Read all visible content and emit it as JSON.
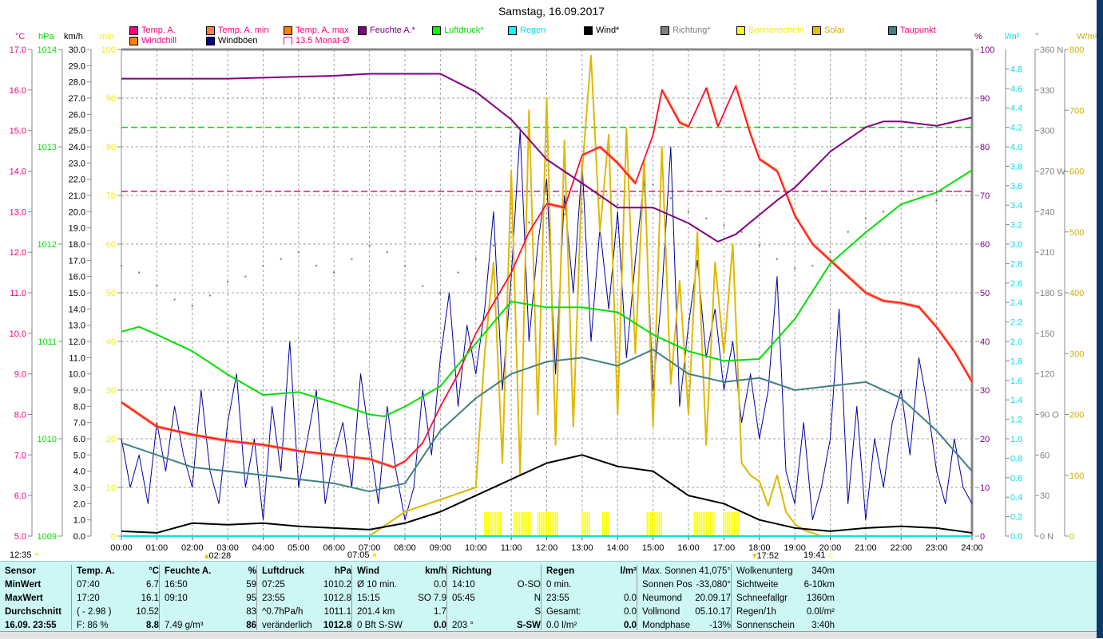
{
  "title": "Samstag, 16.09.2017",
  "legend": [
    {
      "label": "Temp. A.",
      "color": "#ff0080",
      "text": "#ff0080"
    },
    {
      "label": "Windchill",
      "color": "#ff8000",
      "text": "#ff0080"
    },
    {
      "label": "Temp. A. min",
      "color": "#ff8040",
      "text": "#ff0080"
    },
    {
      "label": "Windböen",
      "color": "#000090",
      "text": "#000000"
    },
    {
      "label": "Temp. A. max",
      "color": "#ff8000",
      "text": "#ff0080"
    },
    {
      "label": "13.5 Monat-Ø",
      "color": "#ffffff",
      "text": "#ff0080"
    },
    {
      "label": "Feuchte A.*",
      "color": "#800080",
      "text": "#800080"
    },
    {
      "label": "Luftdruck*",
      "color": "#00ff00",
      "text": "#00e000"
    },
    {
      "label": "Regen",
      "color": "#00ffff",
      "text": "#00e0e0"
    },
    {
      "label": "Wind*",
      "color": "#000000",
      "text": "#000000"
    },
    {
      "label": "Richtung*",
      "color": "#808080",
      "text": "#808080"
    },
    {
      "label": "Sonnenschein",
      "color": "#ffff00",
      "text": "#f0f000"
    },
    {
      "label": "Solar",
      "color": "#e0c000",
      "text": "#d0b000"
    },
    {
      "label": "Taupunkt",
      "color": "#408080",
      "text": "#ff0080"
    }
  ],
  "units": {
    "c": "°C",
    "hpa": "hPa",
    "kmh": "km/h",
    "min": "min",
    "pct": "%",
    "lm2": "l/m²",
    "deg": "°",
    "wm2": "W/m²"
  },
  "markers": {
    "m1": "12:35",
    "m2": "02:28",
    "m3": "07:05",
    "m4": "17:52",
    "m5": "19:41"
  },
  "chart_data": {
    "type": "line",
    "title": "Samstag, 16.09.2017",
    "x_ticks": [
      "00:00",
      "01:00",
      "02:00",
      "03:00",
      "04:00",
      "05:00",
      "06:00",
      "07:00",
      "08:00",
      "09:00",
      "10:00",
      "11:00",
      "12:00",
      "13:00",
      "14:00",
      "15:00",
      "16:00",
      "17:00",
      "18:00",
      "19:00",
      "20:00",
      "21:00",
      "22:00",
      "23:00",
      "24:00"
    ],
    "axes": {
      "temp": {
        "min": 5,
        "max": 17,
        "step": 1,
        "decimals": 1,
        "color": "#ff0080"
      },
      "hpa": {
        "min": 1009,
        "max": 1014,
        "step": 1,
        "decimals": 0,
        "color": "#00e000"
      },
      "kmh": {
        "min": 0,
        "max": 30,
        "step": 1,
        "decimals": 1,
        "color": "#000000"
      },
      "min": {
        "min": 0,
        "max": 100,
        "step": 10,
        "decimals": 0,
        "color": "#f0f000"
      },
      "pct": {
        "min": 0,
        "max": 100,
        "step": 10,
        "decimals": 0,
        "color": "#800080"
      },
      "lm2": {
        "min": 0,
        "max": 5,
        "step": 0.2,
        "decimals": 1,
        "color": "#00e0f0",
        "label_max": 4.8
      },
      "deg": {
        "min": 0,
        "max": 360,
        "step": 30,
        "decimals": 0,
        "color": "#808080",
        "compass": {
          "0": "N",
          "90": "O",
          "180": "S",
          "270": "W",
          "360": "N"
        }
      },
      "wm2": {
        "min": 0,
        "max": 800,
        "step": 100,
        "decimals": 0,
        "color": "#d0b000"
      }
    },
    "reference_lines": [
      {
        "name": "13.5 Monat-Ø",
        "axis": "temp",
        "value": 13.5,
        "color": "#ff0080"
      },
      {
        "name": "pressure-ref",
        "axis": "hpa",
        "value": 1013.2,
        "color": "#00e000"
      }
    ],
    "series": [
      {
        "name": "Temp. A.",
        "axis": "temp",
        "color": "#ff0040",
        "width": 1.5,
        "t": [
          0,
          1,
          2,
          3,
          4,
          5,
          6,
          7,
          7.67,
          8,
          8.5,
          9,
          9.5,
          10,
          10.5,
          11,
          11.5,
          12,
          12.5,
          13,
          13.5,
          14,
          14.5,
          15,
          15.25,
          15.75,
          16,
          16.5,
          16.83,
          17.33,
          17.75,
          18,
          18.5,
          19,
          19.5,
          20,
          20.5,
          21,
          21.5,
          22,
          22.5,
          23,
          23.5,
          24
        ],
        "v": [
          8.3,
          7.7,
          7.5,
          7.35,
          7.25,
          7.1,
          7.0,
          6.9,
          6.7,
          6.85,
          7.3,
          8.2,
          9.0,
          10.0,
          10.75,
          11.5,
          12.5,
          13.2,
          13.1,
          14.4,
          14.6,
          14.2,
          13.7,
          14.9,
          16.0,
          15.2,
          15.1,
          16.05,
          15.1,
          16.1,
          14.9,
          14.3,
          14.0,
          12.9,
          12.2,
          11.8,
          11.4,
          11.0,
          10.8,
          10.75,
          10.65,
          10.15,
          9.55,
          8.8
        ]
      },
      {
        "name": "Feuchte A.",
        "axis": "pct",
        "color": "#800080",
        "width": 2,
        "t": [
          0,
          3,
          6,
          7,
          9,
          10,
          11,
          12,
          13,
          14,
          15,
          16,
          16.83,
          17.33,
          18,
          18.5,
          19,
          20,
          21,
          21.5,
          22,
          23,
          24
        ],
        "v": [
          94,
          94,
          94.6,
          95,
          95,
          91.3,
          85.6,
          77.4,
          72.5,
          67.5,
          67.5,
          64.3,
          60.5,
          62,
          66,
          69,
          71.6,
          79,
          84,
          85.2,
          85.2,
          84.3,
          86
        ]
      },
      {
        "name": "Luftdruck",
        "axis": "hpa",
        "color": "#00e000",
        "width": 2,
        "t": [
          0,
          0.5,
          1,
          2,
          3,
          4,
          5,
          6,
          7,
          7.42,
          8,
          9,
          10,
          11,
          12,
          13,
          14,
          15,
          16,
          17,
          18,
          19,
          20,
          21,
          22,
          23,
          24
        ],
        "v": [
          1011.1,
          1011.15,
          1011.07,
          1010.9,
          1010.66,
          1010.45,
          1010.48,
          1010.37,
          1010.25,
          1010.23,
          1010.33,
          1010.54,
          1010.98,
          1011.41,
          1011.35,
          1011.35,
          1011.3,
          1011.07,
          1010.9,
          1010.8,
          1010.82,
          1011.23,
          1011.8,
          1012.12,
          1012.41,
          1012.53,
          1012.76
        ]
      },
      {
        "name": "Taupunkt",
        "axis": "temp",
        "color": "#408080",
        "width": 2,
        "t": [
          0,
          1,
          2,
          3,
          4,
          5,
          6,
          7,
          8,
          9,
          10,
          11,
          12,
          13,
          14,
          15,
          16,
          17,
          18,
          19,
          20,
          21,
          22,
          23,
          24
        ],
        "v": [
          7.3,
          7.0,
          6.7,
          6.6,
          6.5,
          6.4,
          6.3,
          6.1,
          6.3,
          7.6,
          8.4,
          9.0,
          9.3,
          9.4,
          9.2,
          9.6,
          9.0,
          8.8,
          8.9,
          8.6,
          8.7,
          8.8,
          8.4,
          7.6,
          6.6
        ]
      },
      {
        "name": "Wind",
        "axis": "kmh",
        "color": "#000000",
        "width": 2,
        "t": [
          0,
          1,
          2,
          3,
          4,
          5,
          6,
          7,
          8,
          9,
          10,
          11,
          12,
          13,
          14,
          15,
          16,
          17,
          18,
          19,
          20,
          21,
          22,
          23,
          24
        ],
        "v": [
          0.3,
          0.2,
          0.8,
          0.7,
          0.8,
          0.6,
          0.5,
          0.4,
          0.8,
          1.5,
          2.5,
          3.5,
          4.5,
          5.0,
          4.3,
          4.0,
          2.5,
          2.0,
          1.0,
          0.5,
          0.3,
          0.5,
          0.6,
          0.5,
          0.2
        ]
      }
    ],
    "windboeen": {
      "axis": "kmh",
      "color": "#0000a0",
      "start": 0,
      "step_h": 0.25,
      "v": [
        6,
        3,
        5,
        2,
        7,
        4,
        8,
        5,
        3,
        9,
        4,
        2,
        7,
        10,
        3,
        6,
        1,
        8,
        4,
        12,
        3,
        6,
        9,
        2,
        5,
        7,
        3,
        10,
        6,
        2,
        8,
        4,
        1,
        3,
        9,
        5,
        11,
        15,
        8,
        13,
        10,
        14,
        20,
        9,
        16,
        25,
        12,
        18,
        22,
        10,
        21,
        15,
        23,
        12,
        19,
        14,
        20,
        11,
        17,
        22,
        9,
        15,
        24,
        8,
        13,
        17,
        11,
        14,
        9,
        12,
        7,
        10,
        6,
        9,
        16,
        4,
        2,
        7,
        1,
        3,
        6,
        14,
        2,
        8,
        1,
        6,
        3,
        7,
        9,
        5,
        11,
        8,
        4,
        2,
        6,
        3,
        2
      ]
    },
    "solar": {
      "axis": "wm2",
      "color": "#e0b800",
      "start": 7,
      "step_h": 0.25,
      "v": [
        0,
        10,
        20,
        30,
        40,
        45,
        50,
        55,
        60,
        65,
        70,
        75,
        80,
        300,
        450,
        120,
        600,
        100,
        700,
        200,
        720,
        150,
        650,
        180,
        600,
        790,
        500,
        660,
        200,
        670,
        300,
        620,
        180,
        640,
        250,
        420,
        200,
        500,
        150,
        450,
        300,
        480,
        120,
        100,
        90,
        50,
        100,
        40,
        20,
        10,
        5,
        0,
        0
      ]
    },
    "richtung": {
      "axis": "deg",
      "color": "#808080",
      "start": 0,
      "step_h": 0.5,
      "v": [
        200,
        195,
        185,
        175,
        170,
        178,
        188,
        192,
        200,
        205,
        210,
        200,
        195,
        205,
        215,
        210,
        200,
        185,
        180,
        195,
        205,
        215,
        225,
        232,
        235,
        238,
        240,
        250,
        245,
        255,
        260,
        250,
        240,
        235,
        230,
        225,
        215,
        205,
        198,
        200,
        210,
        225,
        235,
        240,
        245,
        250,
        248,
        255,
        260
      ]
    },
    "sonnenschein": {
      "color": "#ffff00",
      "intervals": [
        [
          "10:15",
          "10:45"
        ],
        [
          "11:05",
          "11:35"
        ],
        [
          "11:45",
          "12:20"
        ],
        [
          "13:00",
          "13:15"
        ],
        [
          "13:35",
          "13:45"
        ],
        [
          "14:50",
          "15:15"
        ],
        [
          "16:10",
          "16:45"
        ],
        [
          "17:00",
          "17:25"
        ]
      ]
    }
  },
  "panel": {
    "sensor": {
      "h": "Sensor",
      "r1": "MinWert",
      "r2": "MaxWert",
      "r3": "Durchschnitt",
      "r4": "16.09. 23:55"
    },
    "temp": {
      "h": "Temp. A.",
      "u": "°C",
      "r1a": "07:40",
      "r1b": "6.7",
      "r2a": "17:20",
      "r2b": "16.1",
      "r3a": "( - 2.98 )",
      "r3b": "10.52",
      "r4a": "F: 86 %",
      "r4b": "8.8"
    },
    "hum": {
      "h": "Feuchte A.",
      "u": "%",
      "r1a": "16:50",
      "r1b": "59",
      "r2a": "09:10",
      "r2b": "95",
      "r3a": "",
      "r3b": "83",
      "r4a": "7.49 g/m³",
      "r4b": "86"
    },
    "press": {
      "h": "Luftdruck",
      "u": "hPa",
      "r1a": "07:25",
      "r1b": "1010.2",
      "r2a": "23:55",
      "r2b": "1012.8",
      "r3a": "^0.7hPa/h",
      "r3b": "1011.1",
      "r4a": "veränderlich",
      "r4b": "1012.8"
    },
    "wind": {
      "h": "Wind",
      "u": "km/h",
      "r1a": "Ø 10 min.",
      "r1b": "0.0",
      "r2a": "15:15",
      "r2b": "SO 7.9",
      "r3a": "201.4 km",
      "r3b": "1.7",
      "r4a": "0 Bft S-SW",
      "r4b": "0.0"
    },
    "dir": {
      "h": "Richtung",
      "u": "",
      "r1a": "14:10",
      "r1b": "O-SO",
      "r2a": "05:45",
      "r2b": "N",
      "r3a": "",
      "r3b": "S",
      "r4a": "203 °",
      "r4b": "S-SW"
    },
    "rain": {
      "h": "Regen",
      "u": "l/m²",
      "r1a": "0 min.",
      "r1b": "",
      "r2a": "23:55",
      "r2b": "0.0",
      "r3a": "Gesamt:",
      "r3b": "0.0",
      "r4a": "0.0 l/m²",
      "r4b": "0.0"
    },
    "sun": {
      "r0a": "Max. Sonnen",
      "r0b": "41,075°",
      "r1a": "Sonnen Pos",
      "r1b": "-33,080°",
      "r2a": "Neumond",
      "r2b": "20.09.17",
      "r3a": "Vollmond",
      "r3b": "05.10.17",
      "r4a": "Mondphase",
      "r4b": "-13%"
    },
    "misc": {
      "r0a": "Wolkenunterg",
      "r0b": "340m",
      "r1a": "Sichtweite",
      "r1b": "6-10km",
      "r2a": "Schneefallgr",
      "r2b": "1360m",
      "r3a": "Regen/1h",
      "r3b": "0.0l/m²",
      "r4a": "Sonnenschein",
      "r4b": "3:40h"
    }
  }
}
